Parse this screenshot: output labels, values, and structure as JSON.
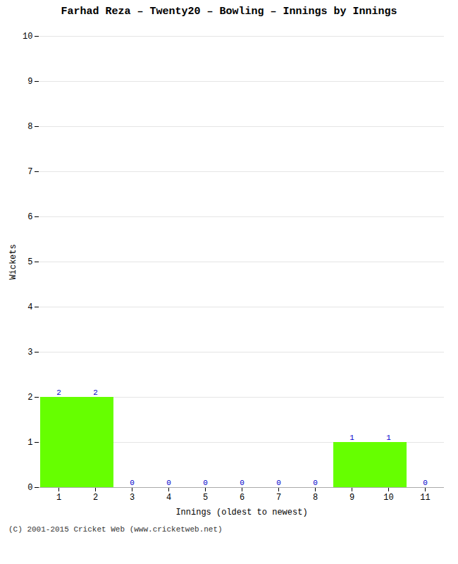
{
  "chart_data": {
    "type": "bar",
    "title": "Farhad Reza – Twenty20 – Bowling – Innings by Innings",
    "xlabel": "Innings (oldest to newest)",
    "ylabel": "Wickets",
    "categories": [
      "1",
      "2",
      "3",
      "4",
      "5",
      "6",
      "7",
      "8",
      "9",
      "10",
      "11"
    ],
    "values": [
      2,
      2,
      0,
      0,
      0,
      0,
      0,
      0,
      1,
      1,
      0
    ],
    "color": "#66ff00",
    "ylim": [
      0,
      10
    ],
    "yticks": [
      0,
      1,
      2,
      3,
      4,
      5,
      6,
      7,
      8,
      9,
      10
    ],
    "grid": true,
    "data_labels": true,
    "caption": "(C) 2001-2015 Cricket Web (www.cricketweb.net)"
  }
}
